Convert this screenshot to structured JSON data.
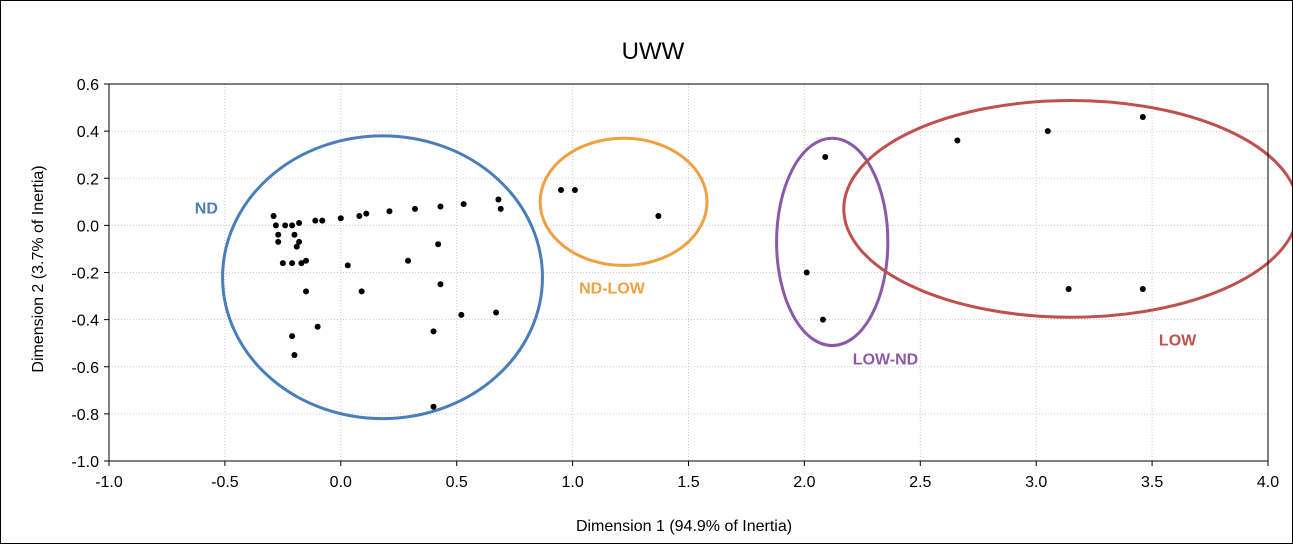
{
  "chart_data": {
    "type": "scatter",
    "title": "UWW",
    "xlabel": "Dimension 1 (94.9% of Inertia)",
    "ylabel": "Dimension 2 (3.7% of Inertia)",
    "xlim": [
      -1.0,
      4.0
    ],
    "ylim": [
      -1.0,
      0.6
    ],
    "xticks": [
      "-1.0",
      "-0.5",
      "0.0",
      "0.5",
      "1.0",
      "1.5",
      "2.0",
      "2.5",
      "3.0",
      "3.5",
      "4.0"
    ],
    "yticks": [
      "0.6",
      "0.4",
      "0.2",
      "0.0",
      "-0.2",
      "-0.4",
      "-0.6",
      "-0.8",
      "-1.0"
    ],
    "grid": true,
    "points": [
      {
        "x": -0.29,
        "y": 0.04
      },
      {
        "x": -0.28,
        "y": 0.0
      },
      {
        "x": -0.27,
        "y": -0.04
      },
      {
        "x": -0.27,
        "y": -0.07
      },
      {
        "x": -0.25,
        "y": -0.16
      },
      {
        "x": -0.24,
        "y": 0.0
      },
      {
        "x": -0.21,
        "y": 0.0
      },
      {
        "x": -0.21,
        "y": -0.16
      },
      {
        "x": -0.2,
        "y": -0.04
      },
      {
        "x": -0.19,
        "y": -0.09
      },
      {
        "x": -0.18,
        "y": -0.07
      },
      {
        "x": -0.18,
        "y": 0.01
      },
      {
        "x": -0.17,
        "y": -0.16
      },
      {
        "x": -0.15,
        "y": -0.15
      },
      {
        "x": -0.15,
        "y": -0.28
      },
      {
        "x": -0.11,
        "y": 0.02
      },
      {
        "x": -0.08,
        "y": 0.02
      },
      {
        "x": 0.0,
        "y": 0.03
      },
      {
        "x": 0.03,
        "y": -0.17
      },
      {
        "x": 0.08,
        "y": 0.04
      },
      {
        "x": 0.11,
        "y": 0.05
      },
      {
        "x": 0.09,
        "y": -0.28
      },
      {
        "x": 0.21,
        "y": 0.06
      },
      {
        "x": 0.29,
        "y": -0.15
      },
      {
        "x": 0.32,
        "y": 0.07
      },
      {
        "x": 0.42,
        "y": -0.08
      },
      {
        "x": 0.43,
        "y": 0.08
      },
      {
        "x": 0.43,
        "y": -0.25
      },
      {
        "x": 0.53,
        "y": 0.09
      },
      {
        "x": 0.52,
        "y": -0.38
      },
      {
        "x": 0.67,
        "y": -0.37
      },
      {
        "x": 0.68,
        "y": 0.11
      },
      {
        "x": 0.69,
        "y": 0.07
      },
      {
        "x": -0.21,
        "y": -0.47
      },
      {
        "x": -0.2,
        "y": -0.55
      },
      {
        "x": -0.1,
        "y": -0.43
      },
      {
        "x": 0.4,
        "y": -0.45
      },
      {
        "x": 0.4,
        "y": -0.77
      },
      {
        "x": 0.95,
        "y": 0.15
      },
      {
        "x": 1.01,
        "y": 0.15
      },
      {
        "x": 1.37,
        "y": 0.04
      },
      {
        "x": 2.01,
        "y": -0.2
      },
      {
        "x": 2.08,
        "y": -0.4
      },
      {
        "x": 2.09,
        "y": 0.29
      },
      {
        "x": 2.66,
        "y": 0.36
      },
      {
        "x": 3.05,
        "y": 0.4
      },
      {
        "x": 3.14,
        "y": -0.27
      },
      {
        "x": 3.46,
        "y": 0.46
      },
      {
        "x": 3.46,
        "y": -0.27
      }
    ],
    "groups": [
      {
        "label": "ND",
        "color": "#4a7ebb",
        "cx": 0.18,
        "cy": -0.22,
        "rx": 0.69,
        "ry": 0.6,
        "label_x": -0.58,
        "label_y": 0.05
      },
      {
        "label": "ND-LOW",
        "color": "#f0a040",
        "cx": 1.22,
        "cy": 0.1,
        "rx": 0.36,
        "ry": 0.27,
        "label_x": 1.17,
        "label_y": -0.29
      },
      {
        "label": "LOW-ND",
        "color": "#8a5aa8",
        "cx": 2.12,
        "cy": -0.07,
        "rx": 0.24,
        "ry": 0.44,
        "label_x": 2.35,
        "label_y": -0.59
      },
      {
        "label": "LOW",
        "color": "#c0504d",
        "cx": 3.15,
        "cy": 0.07,
        "rx": 0.98,
        "ry": 0.46,
        "label_x": 3.61,
        "label_y": -0.51
      }
    ]
  }
}
